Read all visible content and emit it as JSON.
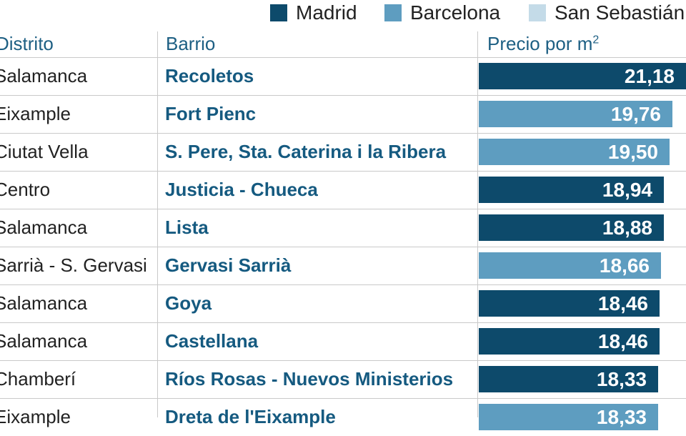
{
  "legend": [
    {
      "label": "Madrid",
      "color": "#0d4a6b"
    },
    {
      "label": "Barcelona",
      "color": "#5e9dc0"
    },
    {
      "label": "San Sebastián",
      "color": "#c4dbe8"
    }
  ],
  "headers": {
    "distrito": "Distrito",
    "barrio": "Barrio",
    "precio": "Precio por m",
    "precio_sup": "2"
  },
  "chart_data": {
    "type": "bar",
    "xlim": [
      0,
      21.18
    ],
    "categories": [
      "Recoletos",
      "Fort Pienc",
      "S. Pere, Sta. Caterina i la Ribera",
      "Justicia - Chueca",
      "Lista",
      "Gervasi Sarrià",
      "Goya",
      "Castellana",
      "Ríos Rosas - Nuevos Ministerios",
      "Dreta de l'Eixample"
    ],
    "rows": [
      {
        "distrito": "Salamanca",
        "barrio": "Recoletos",
        "value": 21.18,
        "label": "21,18",
        "city": "Madrid"
      },
      {
        "distrito": "Eixample",
        "barrio": "Fort Pienc",
        "value": 19.76,
        "label": "19,76",
        "city": "Barcelona"
      },
      {
        "distrito": "Ciutat Vella",
        "barrio": "S. Pere, Sta. Caterina i la Ribera",
        "value": 19.5,
        "label": "19,50",
        "city": "Barcelona"
      },
      {
        "distrito": "Centro",
        "barrio": "Justicia - Chueca",
        "value": 18.94,
        "label": "18,94",
        "city": "Madrid"
      },
      {
        "distrito": "Salamanca",
        "barrio": "Lista",
        "value": 18.88,
        "label": "18,88",
        "city": "Madrid"
      },
      {
        "distrito": "Sarrià - S. Gervasi",
        "barrio": "Gervasi Sarrià",
        "value": 18.66,
        "label": "18,66",
        "city": "Barcelona"
      },
      {
        "distrito": "Salamanca",
        "barrio": "Goya",
        "value": 18.46,
        "label": "18,46",
        "city": "Madrid"
      },
      {
        "distrito": "Salamanca",
        "barrio": "Castellana",
        "value": 18.46,
        "label": "18,46",
        "city": "Madrid"
      },
      {
        "distrito": "Chamberí",
        "barrio": "Ríos Rosas - Nuevos Ministerios",
        "value": 18.33,
        "label": "18,33",
        "city": "Madrid"
      },
      {
        "distrito": "Eixample",
        "barrio": "Dreta de l'Eixample",
        "value": 18.33,
        "label": "18,33",
        "city": "Barcelona"
      }
    ]
  }
}
